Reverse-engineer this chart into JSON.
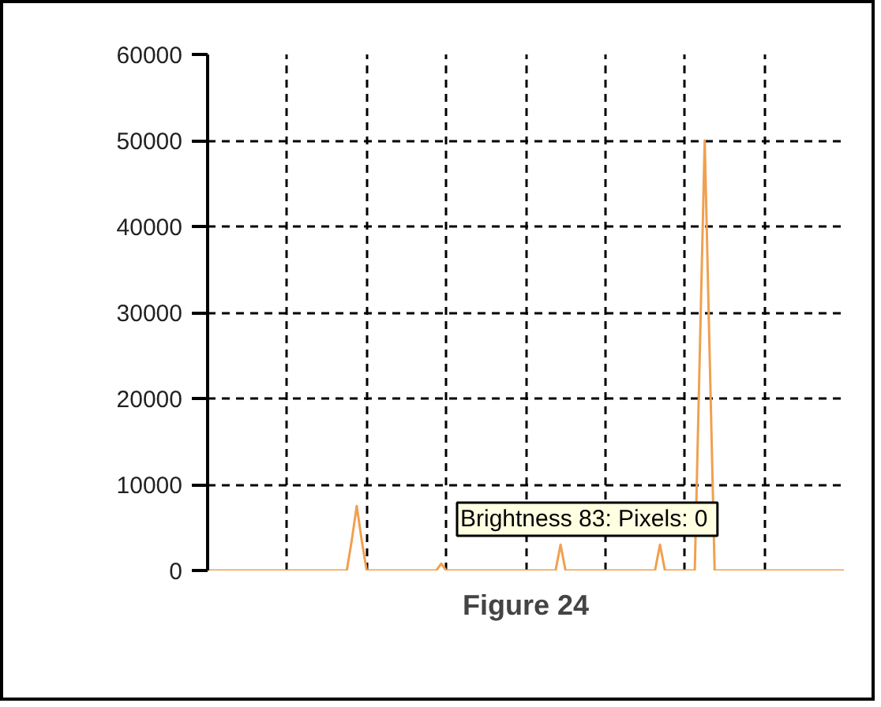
{
  "chart_data": {
    "type": "line",
    "categories": [
      null,
      null,
      null,
      null,
      null,
      null,
      null,
      null,
      null,
      null,
      null,
      null,
      null,
      null,
      null,
      null,
      null,
      null,
      null,
      null,
      null,
      null,
      null,
      null,
      null,
      null,
      null,
      null,
      null,
      null,
      null,
      null,
      null,
      null,
      null,
      null,
      null,
      null,
      null,
      null,
      null,
      null,
      null,
      null,
      null,
      null,
      null,
      null,
      null,
      null,
      null,
      null,
      null,
      null,
      null,
      null,
      null,
      null,
      null,
      null,
      null,
      null,
      null,
      null,
      null,
      null,
      null,
      null,
      null,
      null,
      null,
      null,
      null,
      null,
      null,
      null,
      null,
      null,
      null,
      null,
      null,
      null,
      null,
      null,
      null,
      null,
      null,
      null,
      null,
      null,
      null,
      null,
      null,
      null,
      null,
      null,
      null,
      null,
      null,
      null,
      null,
      null,
      null,
      null,
      null,
      null,
      null,
      null,
      null,
      null,
      null,
      null,
      null,
      null,
      null,
      null,
      null,
      null,
      null,
      null,
      null,
      null,
      null,
      null,
      null,
      null,
      null,
      null,
      null
    ],
    "series": [
      {
        "color": "#f0a050",
        "values": [
          0,
          0,
          0,
          0,
          0,
          0,
          0,
          0,
          0,
          0,
          0,
          0,
          0,
          0,
          0,
          0,
          0,
          0,
          0,
          0,
          0,
          0,
          0,
          0,
          0,
          0,
          0,
          0,
          0,
          3500,
          7500,
          3500,
          0,
          0,
          0,
          0,
          0,
          0,
          0,
          0,
          0,
          0,
          0,
          0,
          0,
          0,
          0,
          800,
          0,
          0,
          0,
          0,
          0,
          0,
          0,
          0,
          0,
          0,
          0,
          0,
          0,
          0,
          0,
          0,
          0,
          0,
          0,
          0,
          0,
          0,
          0,
          3000,
          0,
          0,
          0,
          0,
          0,
          0,
          0,
          0,
          0,
          0,
          0,
          0,
          0,
          0,
          0,
          0,
          0,
          0,
          0,
          3000,
          0,
          0,
          0,
          0,
          0,
          0,
          0,
          25000,
          50000,
          25000,
          0,
          0,
          0,
          0,
          0,
          0,
          0,
          0,
          0,
          0,
          0,
          0,
          0,
          0,
          0,
          0,
          0,
          0,
          0,
          0,
          0,
          0,
          0,
          0,
          0,
          0,
          0
        ]
      }
    ],
    "ylim": [
      0,
      60000
    ],
    "yticks": [
      0,
      10000,
      20000,
      30000,
      40000,
      50000,
      60000
    ],
    "grid": true,
    "line_style": "solid",
    "annotations": [
      "Brightness 83:  Pixels: 0",
      "Figure 24"
    ]
  }
}
